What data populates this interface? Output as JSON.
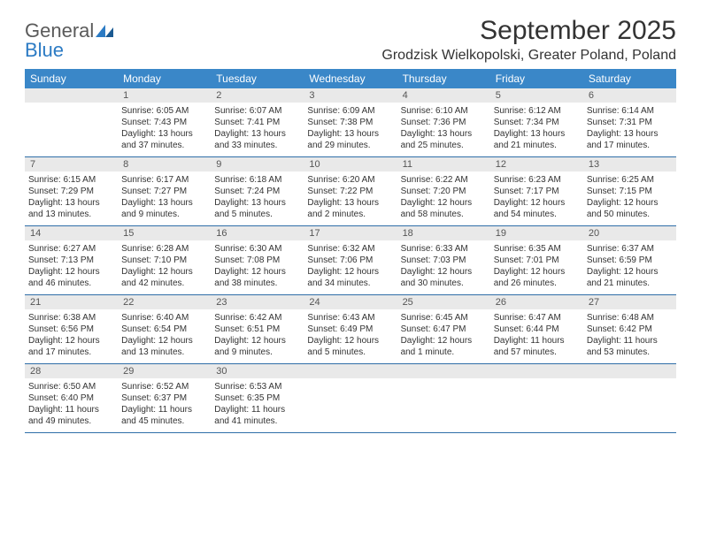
{
  "logo": {
    "line1": "General",
    "line2": "Blue"
  },
  "title": "September 2025",
  "location": "Grodzisk Wielkopolski, Greater Poland, Poland",
  "colors": {
    "header_bar": "#3a87c8",
    "header_text": "#ffffff",
    "daynum_bg": "#e9e9e9",
    "week_divider": "#2f6ea8",
    "body_text": "#333333",
    "logo_gray": "#5a5a5a",
    "logo_blue": "#2c7bc4"
  },
  "typography": {
    "title_fontsize": 30,
    "location_fontsize": 16,
    "dayheader_fontsize": 12,
    "daynum_fontsize": 11,
    "cell_fontsize": 10
  },
  "day_names": [
    "Sunday",
    "Monday",
    "Tuesday",
    "Wednesday",
    "Thursday",
    "Friday",
    "Saturday"
  ],
  "weeks": [
    {
      "nums": [
        "",
        "1",
        "2",
        "3",
        "4",
        "5",
        "6"
      ],
      "cells": [
        {
          "sunrise": "",
          "sunset": "",
          "daylight": ""
        },
        {
          "sunrise": "Sunrise: 6:05 AM",
          "sunset": "Sunset: 7:43 PM",
          "daylight": "Daylight: 13 hours and 37 minutes."
        },
        {
          "sunrise": "Sunrise: 6:07 AM",
          "sunset": "Sunset: 7:41 PM",
          "daylight": "Daylight: 13 hours and 33 minutes."
        },
        {
          "sunrise": "Sunrise: 6:09 AM",
          "sunset": "Sunset: 7:38 PM",
          "daylight": "Daylight: 13 hours and 29 minutes."
        },
        {
          "sunrise": "Sunrise: 6:10 AM",
          "sunset": "Sunset: 7:36 PM",
          "daylight": "Daylight: 13 hours and 25 minutes."
        },
        {
          "sunrise": "Sunrise: 6:12 AM",
          "sunset": "Sunset: 7:34 PM",
          "daylight": "Daylight: 13 hours and 21 minutes."
        },
        {
          "sunrise": "Sunrise: 6:14 AM",
          "sunset": "Sunset: 7:31 PM",
          "daylight": "Daylight: 13 hours and 17 minutes."
        }
      ]
    },
    {
      "nums": [
        "7",
        "8",
        "9",
        "10",
        "11",
        "12",
        "13"
      ],
      "cells": [
        {
          "sunrise": "Sunrise: 6:15 AM",
          "sunset": "Sunset: 7:29 PM",
          "daylight": "Daylight: 13 hours and 13 minutes."
        },
        {
          "sunrise": "Sunrise: 6:17 AM",
          "sunset": "Sunset: 7:27 PM",
          "daylight": "Daylight: 13 hours and 9 minutes."
        },
        {
          "sunrise": "Sunrise: 6:18 AM",
          "sunset": "Sunset: 7:24 PM",
          "daylight": "Daylight: 13 hours and 5 minutes."
        },
        {
          "sunrise": "Sunrise: 6:20 AM",
          "sunset": "Sunset: 7:22 PM",
          "daylight": "Daylight: 13 hours and 2 minutes."
        },
        {
          "sunrise": "Sunrise: 6:22 AM",
          "sunset": "Sunset: 7:20 PM",
          "daylight": "Daylight: 12 hours and 58 minutes."
        },
        {
          "sunrise": "Sunrise: 6:23 AM",
          "sunset": "Sunset: 7:17 PM",
          "daylight": "Daylight: 12 hours and 54 minutes."
        },
        {
          "sunrise": "Sunrise: 6:25 AM",
          "sunset": "Sunset: 7:15 PM",
          "daylight": "Daylight: 12 hours and 50 minutes."
        }
      ]
    },
    {
      "nums": [
        "14",
        "15",
        "16",
        "17",
        "18",
        "19",
        "20"
      ],
      "cells": [
        {
          "sunrise": "Sunrise: 6:27 AM",
          "sunset": "Sunset: 7:13 PM",
          "daylight": "Daylight: 12 hours and 46 minutes."
        },
        {
          "sunrise": "Sunrise: 6:28 AM",
          "sunset": "Sunset: 7:10 PM",
          "daylight": "Daylight: 12 hours and 42 minutes."
        },
        {
          "sunrise": "Sunrise: 6:30 AM",
          "sunset": "Sunset: 7:08 PM",
          "daylight": "Daylight: 12 hours and 38 minutes."
        },
        {
          "sunrise": "Sunrise: 6:32 AM",
          "sunset": "Sunset: 7:06 PM",
          "daylight": "Daylight: 12 hours and 34 minutes."
        },
        {
          "sunrise": "Sunrise: 6:33 AM",
          "sunset": "Sunset: 7:03 PM",
          "daylight": "Daylight: 12 hours and 30 minutes."
        },
        {
          "sunrise": "Sunrise: 6:35 AM",
          "sunset": "Sunset: 7:01 PM",
          "daylight": "Daylight: 12 hours and 26 minutes."
        },
        {
          "sunrise": "Sunrise: 6:37 AM",
          "sunset": "Sunset: 6:59 PM",
          "daylight": "Daylight: 12 hours and 21 minutes."
        }
      ]
    },
    {
      "nums": [
        "21",
        "22",
        "23",
        "24",
        "25",
        "26",
        "27"
      ],
      "cells": [
        {
          "sunrise": "Sunrise: 6:38 AM",
          "sunset": "Sunset: 6:56 PM",
          "daylight": "Daylight: 12 hours and 17 minutes."
        },
        {
          "sunrise": "Sunrise: 6:40 AM",
          "sunset": "Sunset: 6:54 PM",
          "daylight": "Daylight: 12 hours and 13 minutes."
        },
        {
          "sunrise": "Sunrise: 6:42 AM",
          "sunset": "Sunset: 6:51 PM",
          "daylight": "Daylight: 12 hours and 9 minutes."
        },
        {
          "sunrise": "Sunrise: 6:43 AM",
          "sunset": "Sunset: 6:49 PM",
          "daylight": "Daylight: 12 hours and 5 minutes."
        },
        {
          "sunrise": "Sunrise: 6:45 AM",
          "sunset": "Sunset: 6:47 PM",
          "daylight": "Daylight: 12 hours and 1 minute."
        },
        {
          "sunrise": "Sunrise: 6:47 AM",
          "sunset": "Sunset: 6:44 PM",
          "daylight": "Daylight: 11 hours and 57 minutes."
        },
        {
          "sunrise": "Sunrise: 6:48 AM",
          "sunset": "Sunset: 6:42 PM",
          "daylight": "Daylight: 11 hours and 53 minutes."
        }
      ]
    },
    {
      "nums": [
        "28",
        "29",
        "30",
        "",
        "",
        "",
        ""
      ],
      "cells": [
        {
          "sunrise": "Sunrise: 6:50 AM",
          "sunset": "Sunset: 6:40 PM",
          "daylight": "Daylight: 11 hours and 49 minutes."
        },
        {
          "sunrise": "Sunrise: 6:52 AM",
          "sunset": "Sunset: 6:37 PM",
          "daylight": "Daylight: 11 hours and 45 minutes."
        },
        {
          "sunrise": "Sunrise: 6:53 AM",
          "sunset": "Sunset: 6:35 PM",
          "daylight": "Daylight: 11 hours and 41 minutes."
        },
        {
          "sunrise": "",
          "sunset": "",
          "daylight": ""
        },
        {
          "sunrise": "",
          "sunset": "",
          "daylight": ""
        },
        {
          "sunrise": "",
          "sunset": "",
          "daylight": ""
        },
        {
          "sunrise": "",
          "sunset": "",
          "daylight": ""
        }
      ]
    }
  ]
}
